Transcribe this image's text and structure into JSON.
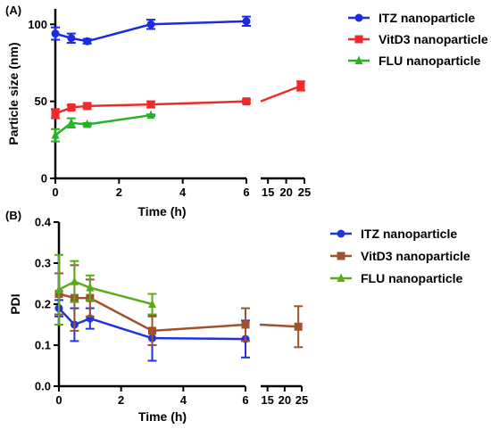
{
  "chart_data": [
    {
      "panel": "(A)",
      "type": "line",
      "title": "",
      "xlabel": "Time (h)",
      "ylabel": "Particle size (nm)",
      "x_segments": [
        {
          "range": [
            0,
            6
          ],
          "ticks": [
            0,
            2,
            4,
            6
          ]
        },
        {
          "range": [
            13,
            25
          ],
          "ticks": [
            15,
            20,
            25
          ]
        }
      ],
      "ylim": [
        0,
        110
      ],
      "yticks": [
        0,
        50,
        100
      ],
      "grid": false,
      "legend_position": "top-right",
      "series": [
        {
          "name": "ITZ nanoparticle",
          "color": "#1a2be0",
          "marker": "circle",
          "points": [
            {
              "x": 0,
              "y": 94,
              "err": 4
            },
            {
              "x": 0.5,
              "y": 91,
              "err": 3
            },
            {
              "x": 1,
              "y": 89,
              "err": 1.5
            },
            {
              "x": 3,
              "y": 100,
              "err": 3
            },
            {
              "x": 6,
              "y": 102,
              "err": 3
            }
          ]
        },
        {
          "name": "VitD3 nanoparticle",
          "color": "#f02a2a",
          "marker": "square",
          "points": [
            {
              "x": 0,
              "y": 42,
              "err": 3
            },
            {
              "x": 0.5,
              "y": 46,
              "err": 1.5
            },
            {
              "x": 1,
              "y": 47,
              "err": 1.5
            },
            {
              "x": 3,
              "y": 48,
              "err": 2
            },
            {
              "x": 6,
              "y": 50,
              "err": 1
            },
            {
              "x": 24,
              "y": 60,
              "err": 3
            }
          ]
        },
        {
          "name": "FLU nanoparticle",
          "color": "#22b422",
          "marker": "triangle",
          "points": [
            {
              "x": 0,
              "y": 28,
              "err": 4
            },
            {
              "x": 0.5,
              "y": 36,
              "err": 3
            },
            {
              "x": 1,
              "y": 35,
              "err": 1
            },
            {
              "x": 3,
              "y": 41,
              "err": 0.5
            }
          ]
        }
      ]
    },
    {
      "panel": "(B)",
      "type": "line",
      "title": "",
      "xlabel": "Time (h)",
      "ylabel": "PDI",
      "x_segments": [
        {
          "range": [
            0,
            6
          ],
          "ticks": [
            0,
            2,
            4,
            6
          ]
        },
        {
          "range": [
            13,
            25
          ],
          "ticks": [
            15,
            20,
            25
          ]
        }
      ],
      "ylim": [
        0,
        0.4
      ],
      "yticks": [
        "0.0",
        "0.1",
        "0.2",
        "0.3",
        "0.4"
      ],
      "grid": false,
      "legend_position": "top-right",
      "series": [
        {
          "name": "ITZ nanoparticle",
          "color": "#2233dd",
          "marker": "circle",
          "points": [
            {
              "x": 0,
              "y": 0.19,
              "err": 0.02
            },
            {
              "x": 0.5,
              "y": 0.15,
              "err": 0.04
            },
            {
              "x": 1,
              "y": 0.165,
              "err": 0.025
            },
            {
              "x": 3,
              "y": 0.117,
              "err": 0.055
            },
            {
              "x": 6,
              "y": 0.115,
              "err": 0.045
            }
          ]
        },
        {
          "name": "VitD3 nanoparticle",
          "color": "#a0522d",
          "marker": "square",
          "points": [
            {
              "x": 0,
              "y": 0.225,
              "err": 0.05
            },
            {
              "x": 0.5,
              "y": 0.215,
              "err": 0.08
            },
            {
              "x": 1,
              "y": 0.215,
              "err": 0.045
            },
            {
              "x": 3,
              "y": 0.135,
              "err": 0.035
            },
            {
              "x": 6,
              "y": 0.15,
              "err": 0.04
            },
            {
              "x": 24,
              "y": 0.145,
              "err": 0.05
            }
          ]
        },
        {
          "name": "FLU nanoparticle",
          "color": "#5aaa1e",
          "marker": "triangle",
          "points": [
            {
              "x": 0,
              "y": 0.235,
              "err": 0.085
            },
            {
              "x": 0.5,
              "y": 0.255,
              "err": 0.05
            },
            {
              "x": 1,
              "y": 0.24,
              "err": 0.03
            },
            {
              "x": 3,
              "y": 0.2,
              "err": 0.025
            }
          ]
        }
      ]
    }
  ]
}
